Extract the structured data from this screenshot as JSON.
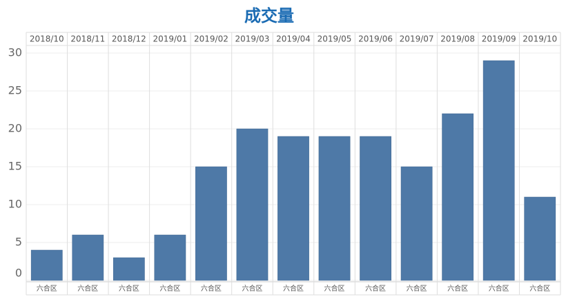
{
  "chart_data": {
    "type": "bar",
    "title": "成交量",
    "categories": [
      "2018/10",
      "2018/11",
      "2018/12",
      "2019/01",
      "2019/02",
      "2019/03",
      "2019/04",
      "2019/05",
      "2019/06",
      "2019/07",
      "2019/08",
      "2019/09",
      "2019/10"
    ],
    "sub_categories": [
      "六合区",
      "六合区",
      "六合区",
      "六合区",
      "六合区",
      "六合区",
      "六合区",
      "六合区",
      "六合区",
      "六合区",
      "六合区",
      "六合区",
      "六合区"
    ],
    "values": [
      4,
      6,
      3,
      6,
      15,
      20,
      19,
      19,
      19,
      15,
      22,
      29,
      11
    ],
    "color": "#4e79a7",
    "ylim": [
      0,
      31
    ],
    "yticks": [
      0,
      5,
      10,
      15,
      20,
      25,
      30
    ],
    "grid": true
  }
}
